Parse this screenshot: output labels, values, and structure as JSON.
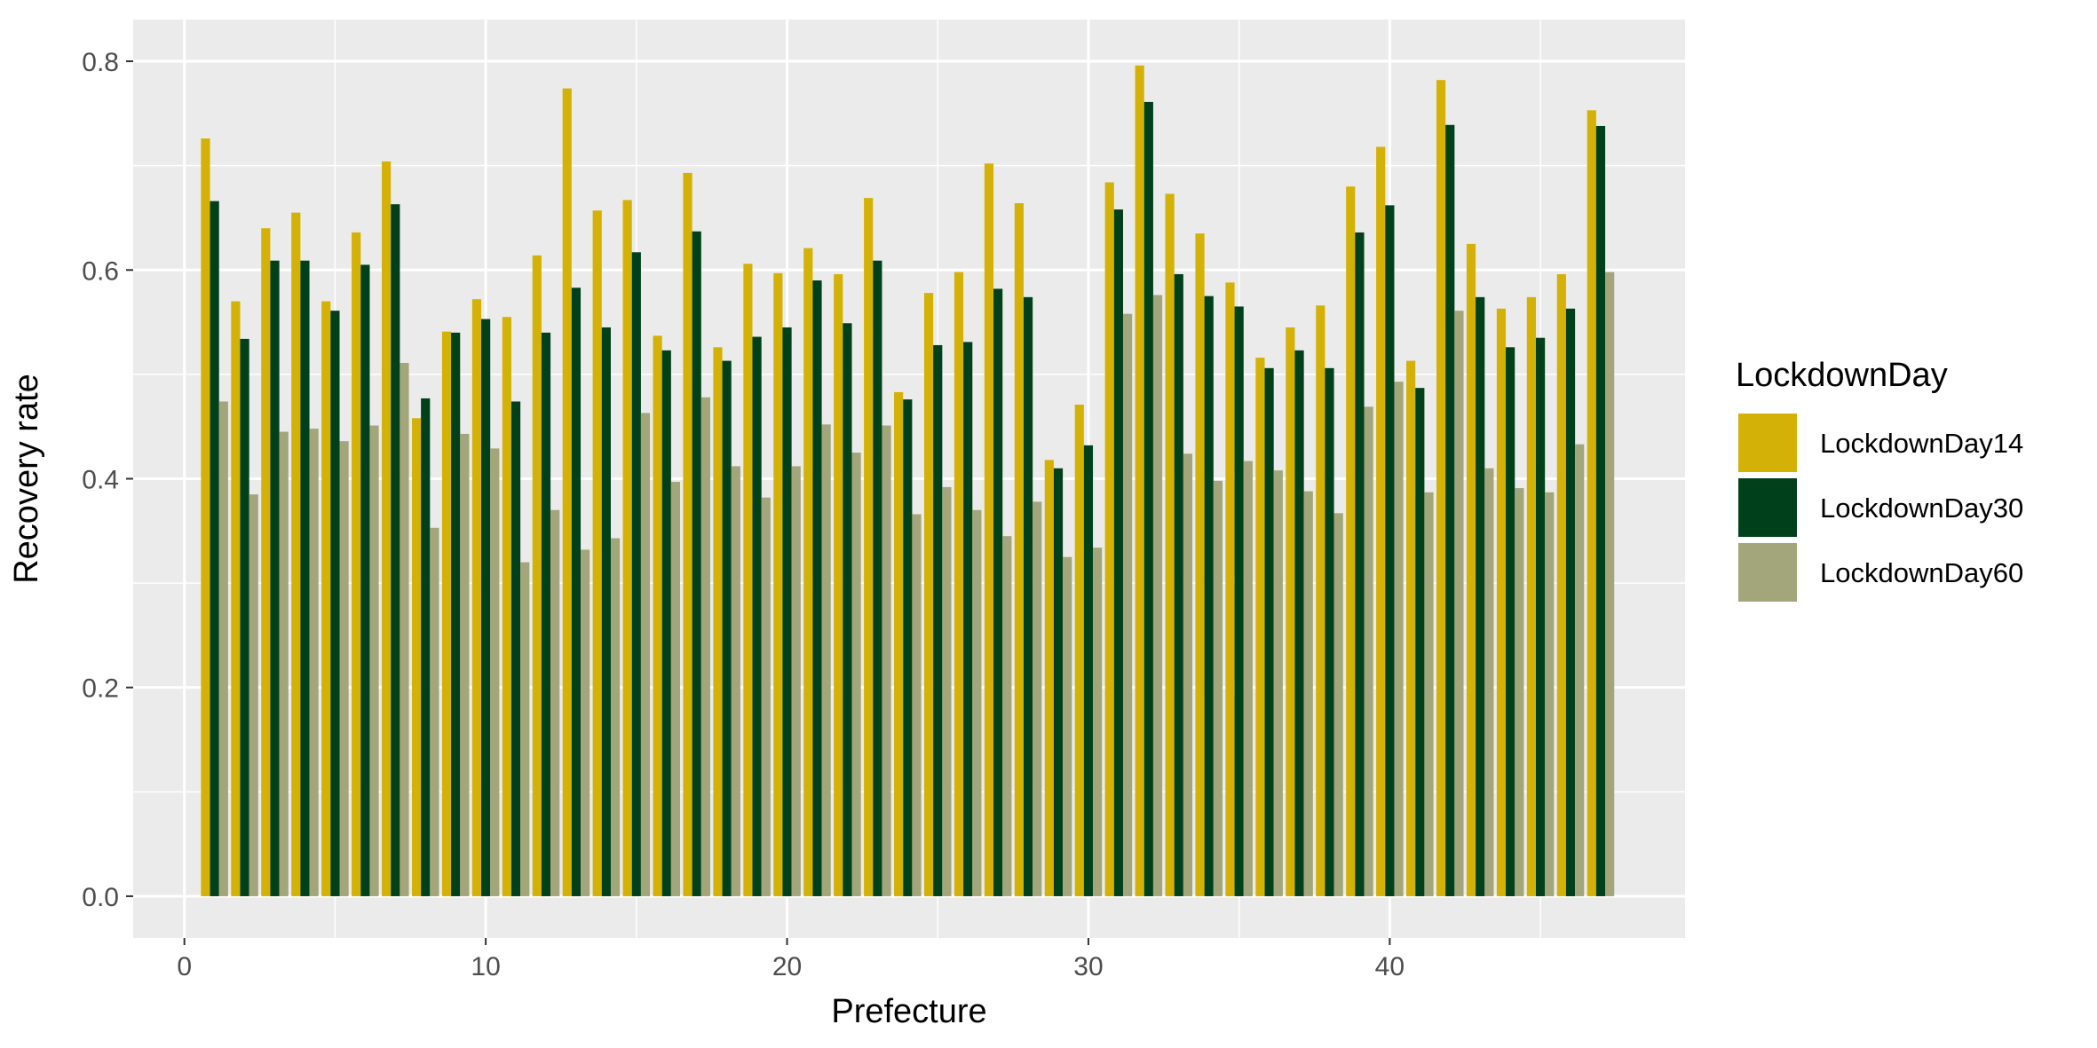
{
  "chart_data": {
    "type": "bar",
    "xlabel": "Prefecture",
    "ylabel": "Recovery rate",
    "xlim": [
      -1.7,
      49.8
    ],
    "ylim": [
      -0.04,
      0.84
    ],
    "xticks": [
      0,
      10,
      20,
      30,
      40
    ],
    "yticks": [
      0.0,
      0.2,
      0.4,
      0.6,
      0.8
    ],
    "xtick_labels": [
      "0",
      "10",
      "20",
      "30",
      "40"
    ],
    "ytick_labels": [
      "0.0",
      "0.2",
      "0.4",
      "0.6",
      "0.8"
    ],
    "grid": true,
    "legend": {
      "title": "LockdownDay",
      "position": "right"
    },
    "x": [
      1,
      2,
      3,
      4,
      5,
      6,
      7,
      8,
      9,
      10,
      11,
      12,
      13,
      14,
      15,
      16,
      17,
      18,
      19,
      20,
      21,
      22,
      23,
      24,
      25,
      26,
      27,
      28,
      29,
      30,
      31,
      32,
      33,
      34,
      35,
      36,
      37,
      38,
      39,
      40,
      41,
      42,
      43,
      44,
      45,
      46,
      47
    ],
    "series": [
      {
        "name": "LockdownDay14",
        "color": "#D4B106",
        "values": [
          0.726,
          0.57,
          0.64,
          0.655,
          0.57,
          0.636,
          0.704,
          0.458,
          0.541,
          0.572,
          0.555,
          0.614,
          0.774,
          0.657,
          0.667,
          0.537,
          0.693,
          0.526,
          0.606,
          0.597,
          0.621,
          0.596,
          0.669,
          0.483,
          0.578,
          0.598,
          0.702,
          0.664,
          0.418,
          0.471,
          0.684,
          0.796,
          0.673,
          0.635,
          0.588,
          0.516,
          0.545,
          0.566,
          0.68,
          0.718,
          0.513,
          0.782,
          0.625,
          0.563,
          0.574,
          0.596,
          0.753
        ]
      },
      {
        "name": "LockdownDay30",
        "color": "#00401A",
        "values": [
          0.666,
          0.534,
          0.609,
          0.609,
          0.561,
          0.605,
          0.663,
          0.477,
          0.54,
          0.553,
          0.474,
          0.54,
          0.583,
          0.545,
          0.617,
          0.523,
          0.637,
          0.513,
          0.536,
          0.545,
          0.59,
          0.549,
          0.609,
          0.476,
          0.528,
          0.531,
          0.582,
          0.574,
          0.41,
          0.432,
          0.658,
          0.761,
          0.596,
          0.575,
          0.565,
          0.506,
          0.523,
          0.506,
          0.636,
          0.662,
          0.487,
          0.739,
          0.574,
          0.526,
          0.535,
          0.563,
          0.738
        ]
      },
      {
        "name": "LockdownDay60",
        "color": "#A3A57A",
        "values": [
          0.474,
          0.385,
          0.445,
          0.448,
          0.436,
          0.451,
          0.511,
          0.353,
          0.443,
          0.429,
          0.32,
          0.37,
          0.332,
          0.343,
          0.463,
          0.397,
          0.478,
          0.412,
          0.382,
          0.412,
          0.452,
          0.425,
          0.451,
          0.366,
          0.392,
          0.37,
          0.345,
          0.378,
          0.325,
          0.334,
          0.558,
          0.576,
          0.424,
          0.398,
          0.417,
          0.408,
          0.388,
          0.367,
          0.469,
          0.493,
          0.387,
          0.561,
          0.41,
          0.391,
          0.387,
          0.433,
          0.598
        ]
      }
    ]
  }
}
